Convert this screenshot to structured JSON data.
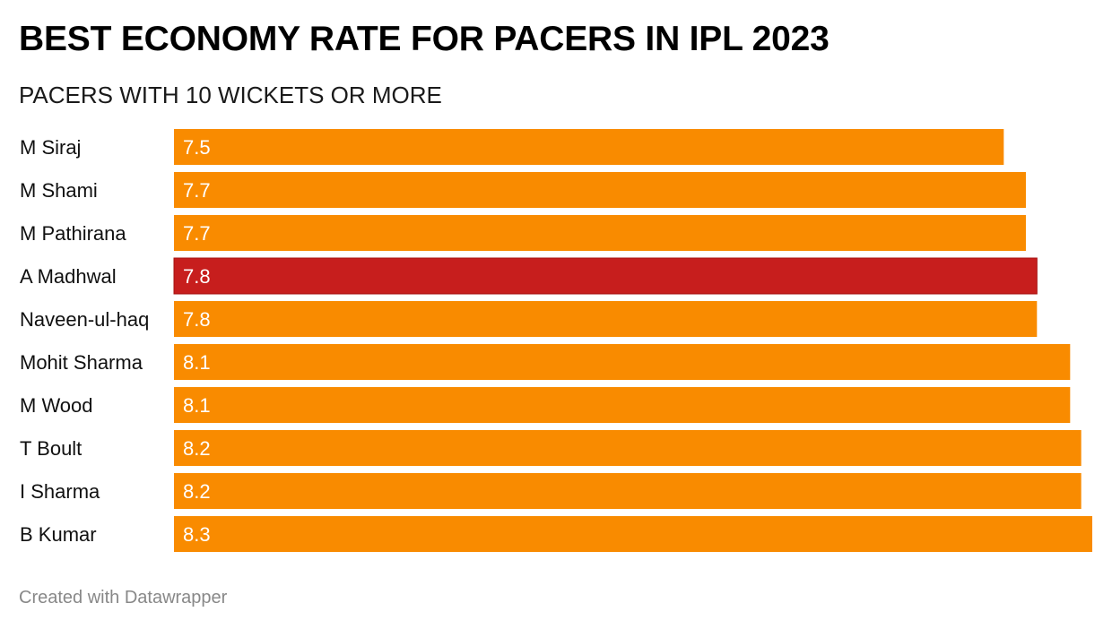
{
  "header": {
    "title": "BEST ECONOMY RATE FOR PACERS IN IPL 2023",
    "subtitle": "PACERS WITH 10 WICKETS OR MORE"
  },
  "footer": {
    "credit": "Created with Datawrapper"
  },
  "colors": {
    "default_bar": "#f98b00",
    "highlight_bar": "#c71e1d",
    "value_text": "#ffffff",
    "label_text": "#111111"
  },
  "chart_data": {
    "type": "bar",
    "orientation": "horizontal",
    "title": "BEST ECONOMY RATE FOR PACERS IN IPL 2023",
    "subtitle": "PACERS WITH 10 WICKETS OR MORE",
    "xlabel": "",
    "ylabel": "",
    "xlim": [
      0,
      8.3
    ],
    "grid": false,
    "categories": [
      "M Siraj",
      "M Shami",
      "M Pathirana",
      "A Madhwal",
      "Naveen-ul-haq",
      "Mohit Sharma",
      "M Wood",
      "T Boult",
      "I Sharma",
      "B Kumar"
    ],
    "values": [
      7.5,
      7.7,
      7.7,
      7.8,
      7.8,
      8.1,
      8.1,
      8.2,
      8.2,
      8.3
    ],
    "value_labels": [
      "7.5",
      "7.7",
      "7.7",
      "7.8",
      "7.8",
      "8.1",
      "8.1",
      "8.2",
      "8.2",
      "8.3"
    ],
    "highlighted": [
      "A Madhwal"
    ],
    "source": "Created with Datawrapper"
  }
}
